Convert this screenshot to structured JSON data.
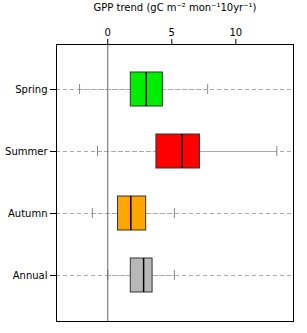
{
  "chart_data": {
    "type": "box",
    "orientation": "horizontal",
    "title": "GPP trend (gC m⁻² mon⁻¹10yr⁻¹)",
    "categories": [
      "Spring",
      "Summer",
      "Autumn",
      "Annual"
    ],
    "values": [
      {
        "low": -2.2,
        "q1": 1.8,
        "median": 3.0,
        "q3": 4.3,
        "high": 7.8
      },
      {
        "low": -0.8,
        "q1": 3.8,
        "median": 5.8,
        "q3": 7.2,
        "high": 13.2
      },
      {
        "low": -1.2,
        "q1": 0.8,
        "median": 1.8,
        "q3": 3.0,
        "high": 5.2
      },
      {
        "low": 0.0,
        "q1": 1.8,
        "median": 2.8,
        "q3": 3.5,
        "high": 5.2
      }
    ],
    "colors": [
      "#00ee00",
      "#ff0000",
      "#ffa500",
      "#b8b8b8"
    ],
    "xlim": [
      -4.0,
      14.5
    ],
    "xticks": [
      0,
      5,
      10
    ],
    "reference_line": 0,
    "grid": "y"
  }
}
